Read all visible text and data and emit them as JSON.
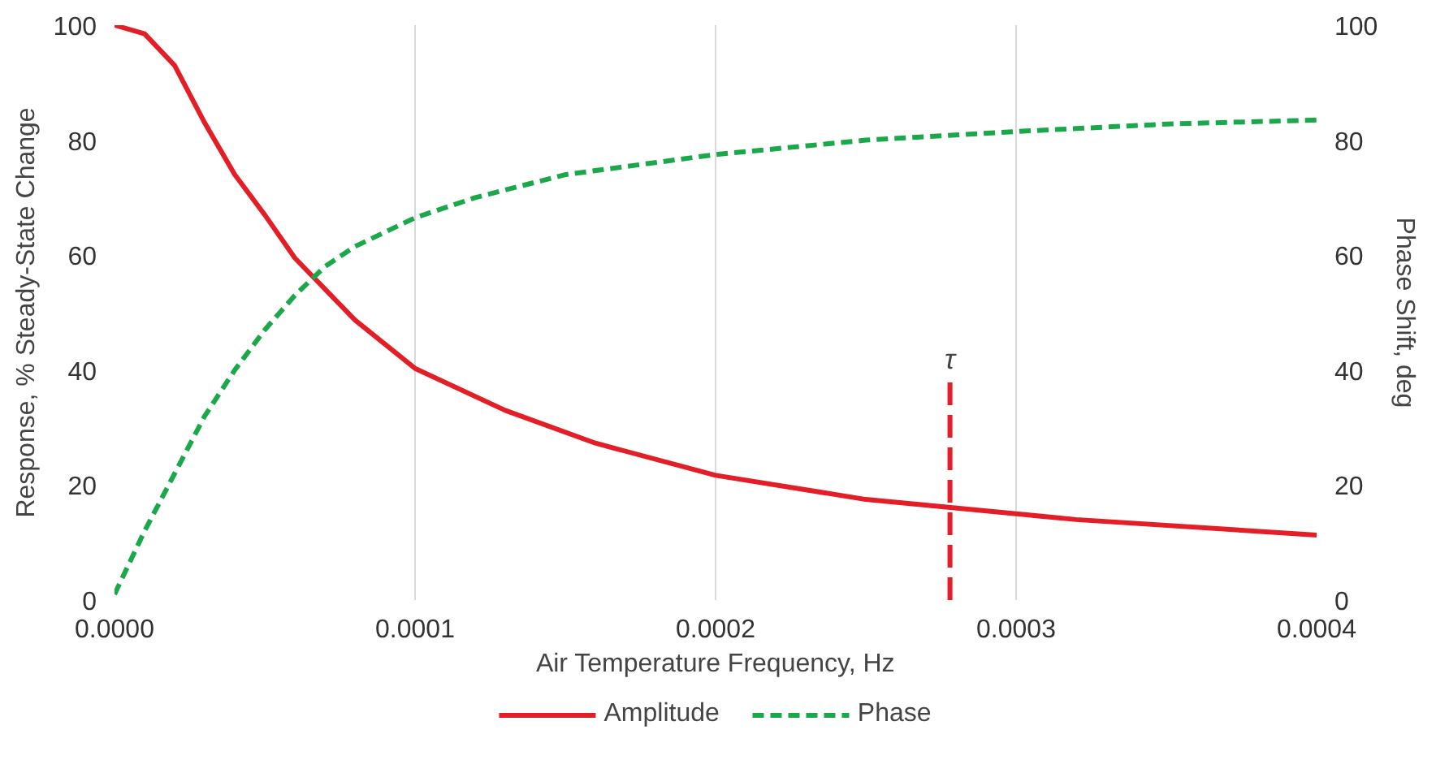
{
  "chart_data": {
    "type": "line",
    "xlabel": "Air Temperature Frequency, Hz",
    "ylabel": "Response, % Steady-State Change",
    "y2label": "Phase Shift, deg",
    "xlim": [
      0,
      0.0004
    ],
    "xticks": [
      {
        "value": 0,
        "label": "0.0000"
      },
      {
        "value": 0.0001,
        "label": "0.0001"
      },
      {
        "value": 0.0002,
        "label": "0.0002"
      },
      {
        "value": 0.0003,
        "label": "0.0003"
      },
      {
        "value": 0.0004,
        "label": "0.0004"
      }
    ],
    "ylim": [
      0,
      100
    ],
    "yticks": [
      0,
      20,
      40,
      60,
      80,
      100
    ],
    "y2lim": [
      0,
      100
    ],
    "y2ticks": [
      0,
      20,
      40,
      60,
      80,
      100
    ],
    "grid": "x",
    "legend": "bottom",
    "series": [
      {
        "name": "Amplitude",
        "color": "#e41e26",
        "line_style": "solid",
        "x": [
          0,
          1e-05,
          2e-05,
          3e-05,
          4e-05,
          5e-05,
          6e-05,
          8e-05,
          0.0001,
          0.00013,
          0.00016,
          0.0002,
          0.00025,
          0.0003,
          0.00032,
          0.0004
        ],
        "values": [
          100,
          98.5,
          93,
          83,
          74,
          67,
          59.5,
          48.7,
          40.3,
          33,
          27.3,
          21.7,
          17.5,
          15,
          14,
          11.3
        ]
      },
      {
        "name": "Phase",
        "color": "#1aa84a",
        "line_style": "dashed",
        "x": [
          0,
          1e-05,
          2e-05,
          3e-05,
          4e-05,
          5e-05,
          6e-05,
          7e-05,
          8e-05,
          0.0001,
          0.00012,
          0.00015,
          0.0002,
          0.00025,
          0.0003,
          0.00035,
          0.0004
        ],
        "values": [
          1,
          12,
          22,
          32,
          40,
          47,
          53,
          58,
          61.5,
          66.5,
          70,
          74,
          77.5,
          80,
          81.5,
          82.8,
          83.5
        ]
      }
    ],
    "ref_lines": [
      {
        "axis": "x",
        "value": 0.000278,
        "label": "τ",
        "color": "#e41e26",
        "line_style": "dashed"
      }
    ]
  }
}
